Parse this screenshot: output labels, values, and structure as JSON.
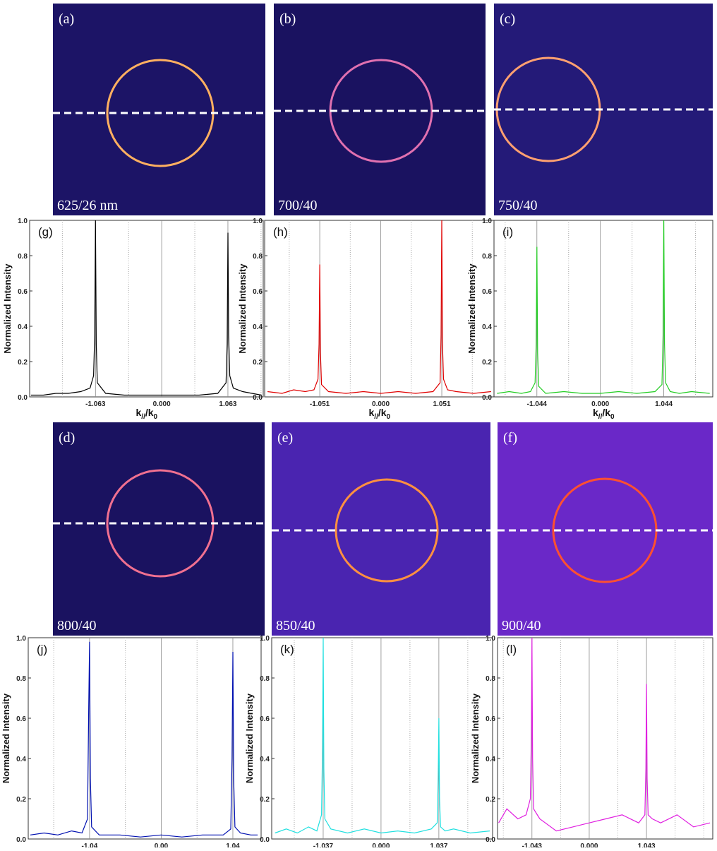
{
  "panels": [
    {
      "label": "(a)",
      "caption": "625/26 nm"
    },
    {
      "label": "(b)",
      "caption": "700/40"
    },
    {
      "label": "(c)",
      "caption": "750/40"
    },
    {
      "label": "(d)",
      "caption": "800/40"
    },
    {
      "label": "(e)",
      "caption": "850/40"
    },
    {
      "label": "(f)",
      "caption": "900/40"
    }
  ],
  "chart_data": [
    {
      "type": "line",
      "label": "(g)",
      "ylabel": "Normalized Intensity",
      "xlabel": [
        "k",
        "//",
        "/k",
        "0"
      ],
      "color": "#000000",
      "xlim": [
        -2.12,
        1.63
      ],
      "ylim": [
        0,
        1
      ],
      "xticks": [
        -1.063,
        {
          "value": 0,
          "label": "0.000"
        },
        1.063
      ],
      "yticks": [
        {
          "value": 0,
          "label": "0.0"
        },
        0.2,
        0.4,
        0.6,
        0.8,
        {
          "value": 1,
          "label": "1.0"
        }
      ],
      "x": [
        -2.1,
        -1.9,
        -1.7,
        -1.5,
        -1.3,
        -1.15,
        -1.093,
        -1.075,
        -1.063,
        -1.051,
        -1.033,
        -0.9,
        -0.6,
        -0.3,
        0,
        0.3,
        0.6,
        0.9,
        1.033,
        1.051,
        1.063,
        1.075,
        1.093,
        1.15,
        1.3,
        1.6
      ],
      "values": [
        0.01,
        0.01,
        0.02,
        0.02,
        0.03,
        0.05,
        0.12,
        0.35,
        1.0,
        0.3,
        0.08,
        0.02,
        0.01,
        0.01,
        0.01,
        0.01,
        0.01,
        0.02,
        0.08,
        0.3,
        0.93,
        0.35,
        0.12,
        0.05,
        0.03,
        0.01
      ]
    },
    {
      "type": "line",
      "label": "(h)",
      "ylabel": "Normalized Intensity",
      "xlabel": [
        "k",
        "//",
        "/k",
        "0"
      ],
      "color": "#e00000",
      "xlim": [
        -2.0,
        1.95
      ],
      "ylim": [
        0,
        1
      ],
      "xticks": [
        -1.051,
        {
          "value": 0,
          "label": "0.000"
        },
        1.051
      ],
      "yticks": [
        {
          "value": 0,
          "label": "0.0"
        },
        0.2,
        0.4,
        0.6,
        0.8,
        {
          "value": 1,
          "label": "1.0"
        }
      ],
      "x": [
        -1.95,
        -1.7,
        -1.5,
        -1.3,
        -1.15,
        -1.081,
        -1.063,
        -1.051,
        -1.039,
        -1.021,
        -0.9,
        -0.6,
        -0.3,
        0,
        0.3,
        0.6,
        0.9,
        1.021,
        1.039,
        1.051,
        1.063,
        1.081,
        1.15,
        1.3,
        1.6,
        1.9
      ],
      "values": [
        0.03,
        0.02,
        0.04,
        0.03,
        0.04,
        0.1,
        0.3,
        0.75,
        0.25,
        0.07,
        0.03,
        0.02,
        0.03,
        0.02,
        0.03,
        0.02,
        0.03,
        0.08,
        0.35,
        1.0,
        0.3,
        0.1,
        0.04,
        0.03,
        0.02,
        0.03
      ]
    },
    {
      "type": "line",
      "label": "(i)",
      "ylabel": "Normalized Intensity",
      "xlabel": [
        "k",
        "//",
        "/k",
        "0"
      ],
      "color": "#22cc22",
      "xlim": [
        -1.75,
        1.85
      ],
      "ylim": [
        0,
        1
      ],
      "xticks": [
        -1.044,
        {
          "value": 0,
          "label": "0.000"
        },
        1.044
      ],
      "yticks": [
        {
          "value": 0,
          "label": "0.0"
        },
        0.2,
        0.4,
        0.6,
        0.8,
        {
          "value": 1,
          "label": "1.0"
        }
      ],
      "x": [
        -1.7,
        -1.5,
        -1.3,
        -1.15,
        -1.074,
        -1.056,
        -1.044,
        -1.032,
        -1.014,
        -0.9,
        -0.6,
        -0.3,
        0,
        0.3,
        0.6,
        0.9,
        1.014,
        1.032,
        1.044,
        1.056,
        1.074,
        1.15,
        1.3,
        1.5,
        1.8
      ],
      "values": [
        0.02,
        0.03,
        0.02,
        0.03,
        0.08,
        0.3,
        0.85,
        0.25,
        0.06,
        0.02,
        0.03,
        0.02,
        0.02,
        0.03,
        0.02,
        0.03,
        0.07,
        0.35,
        1.0,
        0.3,
        0.08,
        0.03,
        0.02,
        0.03,
        0.02
      ]
    },
    {
      "type": "line",
      "label": "(j)",
      "ylabel": "Normalized Intensity",
      "xlabel": [
        "k",
        "//",
        "/k",
        "0"
      ],
      "color": "#0010b0",
      "xlim": [
        -1.93,
        1.45
      ],
      "ylim": [
        0,
        1
      ],
      "xticks": [
        -1.04,
        {
          "value": 0,
          "label": "0.00"
        },
        1.04
      ],
      "yticks": [
        {
          "value": 0,
          "label": "0.0"
        },
        0.2,
        0.4,
        0.6,
        0.8,
        {
          "value": 1,
          "label": "1.0"
        }
      ],
      "x": [
        -1.9,
        -1.7,
        -1.5,
        -1.3,
        -1.15,
        -1.07,
        -1.052,
        -1.04,
        -1.028,
        -1.01,
        -0.9,
        -0.6,
        -0.3,
        0,
        0.3,
        0.6,
        0.9,
        1.01,
        1.028,
        1.04,
        1.052,
        1.07,
        1.15,
        1.3,
        1.4
      ],
      "values": [
        0.02,
        0.03,
        0.02,
        0.04,
        0.03,
        0.1,
        0.65,
        0.98,
        0.3,
        0.06,
        0.02,
        0.02,
        0.01,
        0.02,
        0.01,
        0.02,
        0.02,
        0.05,
        0.4,
        0.93,
        0.3,
        0.06,
        0.03,
        0.02,
        0.02
      ]
    },
    {
      "type": "line",
      "label": "(k)",
      "ylabel": "Normalized Intensity",
      "xlabel": [
        "k",
        "//",
        "/k",
        "0"
      ],
      "color": "#22e0e0",
      "xlim": [
        -1.96,
        2.0
      ],
      "ylim": [
        0,
        1
      ],
      "xticks": [
        -1.037,
        {
          "value": 0,
          "label": "0.000"
        },
        1.037
      ],
      "yticks": [
        {
          "value": 0,
          "label": "0.0"
        },
        0.2,
        0.4,
        0.6,
        0.8,
        {
          "value": 1,
          "label": "1.0"
        }
      ],
      "x": [
        -1.9,
        -1.7,
        -1.5,
        -1.3,
        -1.15,
        -1.067,
        -1.049,
        -1.037,
        -1.025,
        -1.007,
        -0.9,
        -0.6,
        -0.3,
        0,
        0.3,
        0.6,
        0.9,
        1.007,
        1.025,
        1.037,
        1.049,
        1.067,
        1.15,
        1.3,
        1.6,
        1.95
      ],
      "values": [
        0.03,
        0.05,
        0.03,
        0.06,
        0.04,
        0.12,
        0.45,
        1.0,
        0.35,
        0.1,
        0.05,
        0.03,
        0.05,
        0.03,
        0.04,
        0.03,
        0.05,
        0.08,
        0.3,
        0.6,
        0.2,
        0.06,
        0.04,
        0.05,
        0.03,
        0.04
      ]
    },
    {
      "type": "line",
      "label": "(l)",
      "ylabel": "Normalized Intensity",
      "xlabel": [
        "k",
        "//",
        "/k",
        "0"
      ],
      "color": "#e020e0",
      "xlim": [
        -1.67,
        2.25
      ],
      "ylim": [
        0,
        1
      ],
      "xticks": [
        -1.043,
        {
          "value": 0,
          "label": "0.000"
        },
        1.043
      ],
      "yticks": [
        {
          "value": 0,
          "label": "0.0"
        },
        0.2,
        0.4,
        0.6,
        0.8,
        {
          "value": 1,
          "label": "1.0"
        }
      ],
      "x": [
        -1.65,
        -1.5,
        -1.3,
        -1.15,
        -1.073,
        -1.055,
        -1.043,
        -1.031,
        -1.013,
        -0.9,
        -0.6,
        -0.3,
        0,
        0.3,
        0.6,
        0.9,
        1.013,
        1.031,
        1.043,
        1.055,
        1.073,
        1.15,
        1.3,
        1.6,
        1.9,
        2.2
      ],
      "values": [
        0.08,
        0.15,
        0.1,
        0.12,
        0.2,
        0.5,
        1.0,
        0.4,
        0.15,
        0.1,
        0.04,
        0.06,
        0.08,
        0.1,
        0.12,
        0.08,
        0.12,
        0.35,
        0.77,
        0.3,
        0.12,
        0.1,
        0.08,
        0.12,
        0.06,
        0.08
      ]
    }
  ]
}
